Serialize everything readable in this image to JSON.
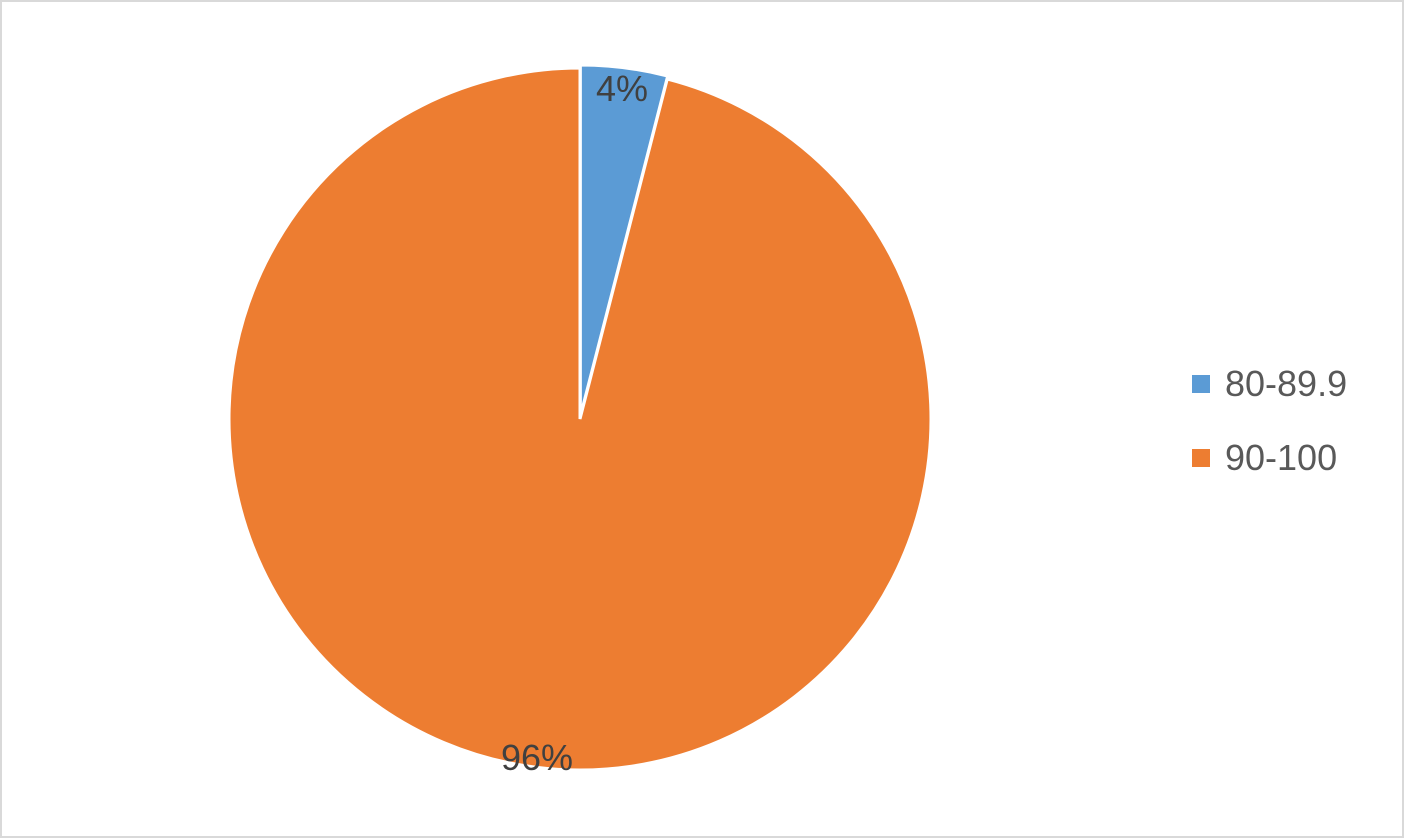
{
  "chart_data": {
    "type": "pie",
    "categories": [
      "80-89.9",
      "90-100"
    ],
    "values": [
      4,
      96
    ],
    "data_labels": [
      "4%",
      "96%"
    ],
    "colors": [
      "#5b9bd5",
      "#ed7d31"
    ],
    "legend_position": "right",
    "title": ""
  }
}
